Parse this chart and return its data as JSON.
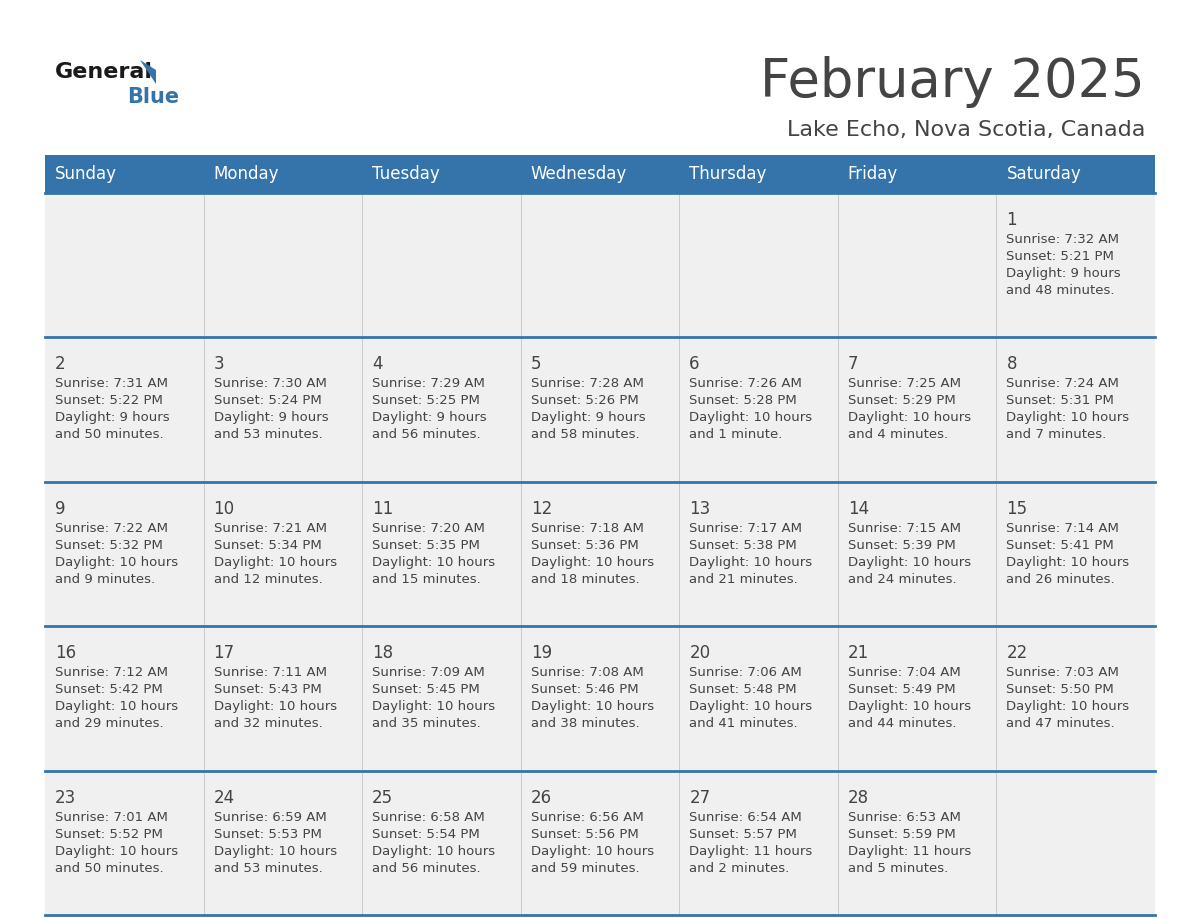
{
  "title": "February 2025",
  "subtitle": "Lake Echo, Nova Scotia, Canada",
  "header_bg": "#3574ab",
  "header_text_color": "#ffffff",
  "cell_bg": "#f0f0f0",
  "day_headers": [
    "Sunday",
    "Monday",
    "Tuesday",
    "Wednesday",
    "Thursday",
    "Friday",
    "Saturday"
  ],
  "days": [
    {
      "day": 1,
      "col": 6,
      "row": 0,
      "sunrise": "7:32 AM",
      "sunset": "5:21 PM",
      "daylight": "9 hours and 48 minutes."
    },
    {
      "day": 2,
      "col": 0,
      "row": 1,
      "sunrise": "7:31 AM",
      "sunset": "5:22 PM",
      "daylight": "9 hours and 50 minutes."
    },
    {
      "day": 3,
      "col": 1,
      "row": 1,
      "sunrise": "7:30 AM",
      "sunset": "5:24 PM",
      "daylight": "9 hours and 53 minutes."
    },
    {
      "day": 4,
      "col": 2,
      "row": 1,
      "sunrise": "7:29 AM",
      "sunset": "5:25 PM",
      "daylight": "9 hours and 56 minutes."
    },
    {
      "day": 5,
      "col": 3,
      "row": 1,
      "sunrise": "7:28 AM",
      "sunset": "5:26 PM",
      "daylight": "9 hours and 58 minutes."
    },
    {
      "day": 6,
      "col": 4,
      "row": 1,
      "sunrise": "7:26 AM",
      "sunset": "5:28 PM",
      "daylight": "10 hours and 1 minute."
    },
    {
      "day": 7,
      "col": 5,
      "row": 1,
      "sunrise": "7:25 AM",
      "sunset": "5:29 PM",
      "daylight": "10 hours and 4 minutes."
    },
    {
      "day": 8,
      "col": 6,
      "row": 1,
      "sunrise": "7:24 AM",
      "sunset": "5:31 PM",
      "daylight": "10 hours and 7 minutes."
    },
    {
      "day": 9,
      "col": 0,
      "row": 2,
      "sunrise": "7:22 AM",
      "sunset": "5:32 PM",
      "daylight": "10 hours and 9 minutes."
    },
    {
      "day": 10,
      "col": 1,
      "row": 2,
      "sunrise": "7:21 AM",
      "sunset": "5:34 PM",
      "daylight": "10 hours and 12 minutes."
    },
    {
      "day": 11,
      "col": 2,
      "row": 2,
      "sunrise": "7:20 AM",
      "sunset": "5:35 PM",
      "daylight": "10 hours and 15 minutes."
    },
    {
      "day": 12,
      "col": 3,
      "row": 2,
      "sunrise": "7:18 AM",
      "sunset": "5:36 PM",
      "daylight": "10 hours and 18 minutes."
    },
    {
      "day": 13,
      "col": 4,
      "row": 2,
      "sunrise": "7:17 AM",
      "sunset": "5:38 PM",
      "daylight": "10 hours and 21 minutes."
    },
    {
      "day": 14,
      "col": 5,
      "row": 2,
      "sunrise": "7:15 AM",
      "sunset": "5:39 PM",
      "daylight": "10 hours and 24 minutes."
    },
    {
      "day": 15,
      "col": 6,
      "row": 2,
      "sunrise": "7:14 AM",
      "sunset": "5:41 PM",
      "daylight": "10 hours and 26 minutes."
    },
    {
      "day": 16,
      "col": 0,
      "row": 3,
      "sunrise": "7:12 AM",
      "sunset": "5:42 PM",
      "daylight": "10 hours and 29 minutes."
    },
    {
      "day": 17,
      "col": 1,
      "row": 3,
      "sunrise": "7:11 AM",
      "sunset": "5:43 PM",
      "daylight": "10 hours and 32 minutes."
    },
    {
      "day": 18,
      "col": 2,
      "row": 3,
      "sunrise": "7:09 AM",
      "sunset": "5:45 PM",
      "daylight": "10 hours and 35 minutes."
    },
    {
      "day": 19,
      "col": 3,
      "row": 3,
      "sunrise": "7:08 AM",
      "sunset": "5:46 PM",
      "daylight": "10 hours and 38 minutes."
    },
    {
      "day": 20,
      "col": 4,
      "row": 3,
      "sunrise": "7:06 AM",
      "sunset": "5:48 PM",
      "daylight": "10 hours and 41 minutes."
    },
    {
      "day": 21,
      "col": 5,
      "row": 3,
      "sunrise": "7:04 AM",
      "sunset": "5:49 PM",
      "daylight": "10 hours and 44 minutes."
    },
    {
      "day": 22,
      "col": 6,
      "row": 3,
      "sunrise": "7:03 AM",
      "sunset": "5:50 PM",
      "daylight": "10 hours and 47 minutes."
    },
    {
      "day": 23,
      "col": 0,
      "row": 4,
      "sunrise": "7:01 AM",
      "sunset": "5:52 PM",
      "daylight": "10 hours and 50 minutes."
    },
    {
      "day": 24,
      "col": 1,
      "row": 4,
      "sunrise": "6:59 AM",
      "sunset": "5:53 PM",
      "daylight": "10 hours and 53 minutes."
    },
    {
      "day": 25,
      "col": 2,
      "row": 4,
      "sunrise": "6:58 AM",
      "sunset": "5:54 PM",
      "daylight": "10 hours and 56 minutes."
    },
    {
      "day": 26,
      "col": 3,
      "row": 4,
      "sunrise": "6:56 AM",
      "sunset": "5:56 PM",
      "daylight": "10 hours and 59 minutes."
    },
    {
      "day": 27,
      "col": 4,
      "row": 4,
      "sunrise": "6:54 AM",
      "sunset": "5:57 PM",
      "daylight": "11 hours and 2 minutes."
    },
    {
      "day": 28,
      "col": 5,
      "row": 4,
      "sunrise": "6:53 AM",
      "sunset": "5:59 PM",
      "daylight": "11 hours and 5 minutes."
    }
  ],
  "num_rows": 5,
  "num_cols": 7,
  "bg_color": "#ffffff",
  "border_color": "#3574ab",
  "text_color": "#444444",
  "day_num_color": "#444444",
  "logo_general_color": "#1a1a1a",
  "logo_blue_color": "#3574ab",
  "logo_triangle_color": "#3574ab"
}
